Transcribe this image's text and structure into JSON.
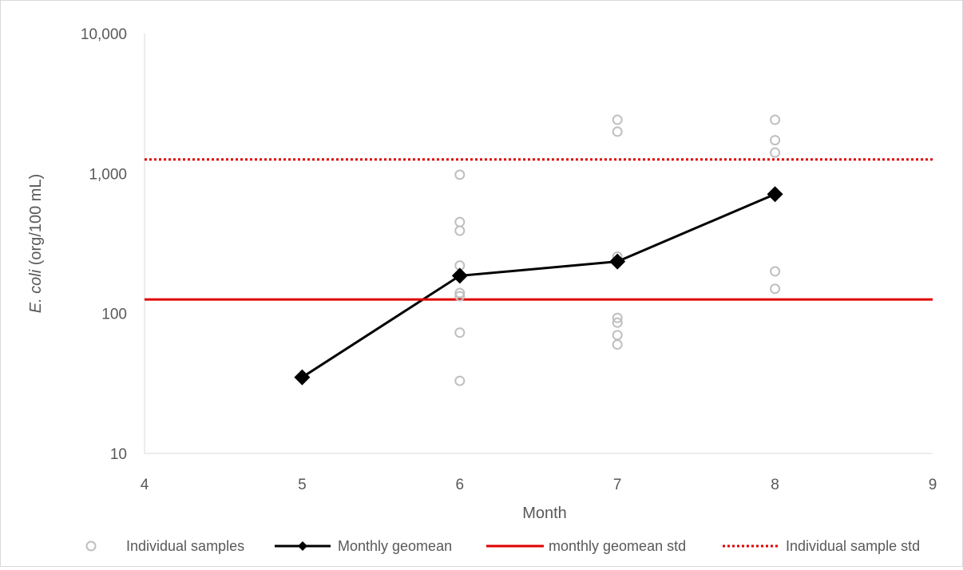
{
  "chart_data": {
    "type": "scatter",
    "title": "",
    "xlabel": "Month",
    "ylabel_italic": "E. coli",
    "ylabel_rest": " (org/100 mL)",
    "xlim": [
      4,
      9
    ],
    "ylim": [
      10,
      10000
    ],
    "y_scale": "log",
    "x_ticks": [
      4,
      5,
      6,
      7,
      8,
      9
    ],
    "x_tick_labels": [
      "4",
      "5",
      "6",
      "7",
      "8",
      "9"
    ],
    "y_ticks": [
      10,
      100,
      1000,
      10000
    ],
    "y_tick_labels": [
      "10",
      "100",
      "1,000",
      "10,000"
    ],
    "grid": false,
    "legend_position": "bottom",
    "series": [
      {
        "name": "Individual samples",
        "kind": "markers",
        "marker": "open-circle",
        "color": "#bfbfbf",
        "points": [
          {
            "x": 5,
            "y": 35
          },
          {
            "x": 6,
            "y": 980
          },
          {
            "x": 6,
            "y": 450
          },
          {
            "x": 6,
            "y": 390
          },
          {
            "x": 6,
            "y": 220
          },
          {
            "x": 6,
            "y": 140
          },
          {
            "x": 6,
            "y": 133
          },
          {
            "x": 6,
            "y": 73
          },
          {
            "x": 6,
            "y": 33
          },
          {
            "x": 7,
            "y": 2420
          },
          {
            "x": 7,
            "y": 1990
          },
          {
            "x": 7,
            "y": 255
          },
          {
            "x": 7,
            "y": 93
          },
          {
            "x": 7,
            "y": 86
          },
          {
            "x": 7,
            "y": 70
          },
          {
            "x": 7,
            "y": 60
          },
          {
            "x": 8,
            "y": 2420
          },
          {
            "x": 8,
            "y": 1730
          },
          {
            "x": 8,
            "y": 1410
          },
          {
            "x": 8,
            "y": 200
          },
          {
            "x": 8,
            "y": 150
          }
        ]
      },
      {
        "name": "Monthly geomean",
        "kind": "line-markers",
        "marker": "diamond",
        "color": "#000000",
        "points": [
          {
            "x": 5,
            "y": 35
          },
          {
            "x": 6,
            "y": 186
          },
          {
            "x": 7,
            "y": 235
          },
          {
            "x": 8,
            "y": 712
          }
        ]
      },
      {
        "name": "monthly geomean std",
        "kind": "hline",
        "style": "solid",
        "color": "#e00000",
        "y": 126
      },
      {
        "name": "Individual sample std",
        "kind": "hline",
        "style": "dotted",
        "color": "#e00000",
        "y": 1260
      }
    ]
  }
}
